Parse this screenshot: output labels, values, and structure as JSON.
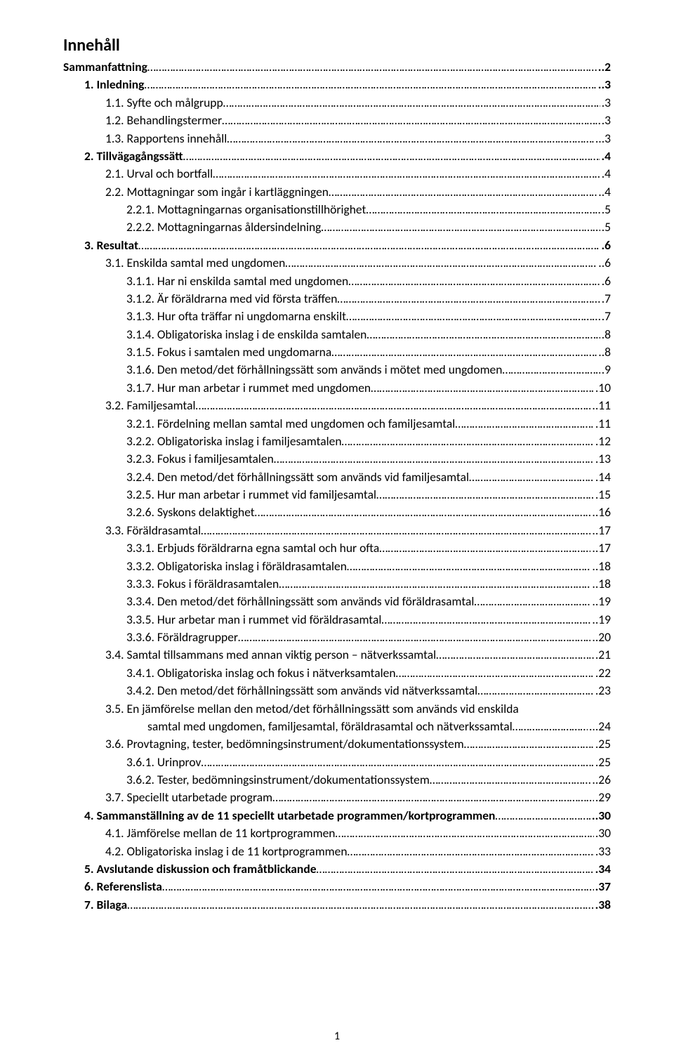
{
  "title": "Innehåll",
  "page_number": "1",
  "entries": [
    {
      "indent": 0,
      "bold": true,
      "label": "Sammanfattning",
      "page": "..2"
    },
    {
      "indent": 1,
      "bold": true,
      "label": "1.  Inledning",
      "page": "..3"
    },
    {
      "indent": 2,
      "bold": false,
      "label": "1.1. Syfte och målgrupp",
      "page": ".3"
    },
    {
      "indent": 2,
      "bold": false,
      "label": "1.2. Behandlingstermer",
      "page": ".3"
    },
    {
      "indent": 2,
      "bold": false,
      "label": "1.3. Rapportens innehåll",
      "page": "...3"
    },
    {
      "indent": 1,
      "bold": true,
      "label": "2.  Tillvägagångssätt",
      "page": ".4"
    },
    {
      "indent": 2,
      "bold": false,
      "label": "2.1. Urval och bortfall",
      "page": ".4"
    },
    {
      "indent": 2,
      "bold": false,
      "label": "2.2. Mottagningar som ingår i kartläggningen",
      "page": "..4"
    },
    {
      "indent": 3,
      "bold": false,
      "label": "2.2.1.  Mottagningarnas organisationstillhörighet",
      "page": ".5"
    },
    {
      "indent": 3,
      "bold": false,
      "label": "2.2.2.  Mottagningarnas åldersindelning",
      "page": ".5"
    },
    {
      "indent": 1,
      "bold": true,
      "label": "3.  Resultat",
      "page": ".6"
    },
    {
      "indent": 2,
      "bold": false,
      "label": "3.1. Enskilda samtal med ungdomen",
      "page": "..6"
    },
    {
      "indent": 3,
      "bold": false,
      "label": "3.1.1.  Har ni enskilda samtal med ungdomen",
      "page": ".6"
    },
    {
      "indent": 3,
      "bold": false,
      "label": "3.1.2.  Är föräldrarna med vid första träffen",
      "page": ".7"
    },
    {
      "indent": 3,
      "bold": false,
      "label": "3.1.3.  Hur ofta träffar ni ungdomarna enskilt",
      "page": ".7"
    },
    {
      "indent": 3,
      "bold": false,
      "label": "3.1.4.  Obligatoriska inslag i de enskilda samtalen",
      "page": ".8"
    },
    {
      "indent": 3,
      "bold": false,
      "label": "3.1.5.  Fokus i samtalen med ungdomarna",
      "page": "..8"
    },
    {
      "indent": 3,
      "bold": false,
      "label": "3.1.6.  Den metod/det förhållningssätt som används i mötet med ungdomen",
      "page": ".9"
    },
    {
      "indent": 3,
      "bold": false,
      "label": "3.1.7.  Hur man arbetar i rummet med ungdomen",
      "page": ".10"
    },
    {
      "indent": 2,
      "bold": false,
      "label": "3.2. Familjesamtal",
      "page": "..11"
    },
    {
      "indent": 3,
      "bold": false,
      "label": "3.2.1.  Fördelning mellan samtal med ungdomen och familjesamtal",
      "page": ".11"
    },
    {
      "indent": 3,
      "bold": false,
      "label": "3.2.2.  Obligatoriska inslag i familjesamtalen",
      "page": ".12"
    },
    {
      "indent": 3,
      "bold": false,
      "label": "3.2.3.  Fokus i familjesamtalen",
      "page": ".13"
    },
    {
      "indent": 3,
      "bold": false,
      "label": "3.2.4.  Den metod/det förhållningssätt som används vid familjesamtal",
      "page": ".14"
    },
    {
      "indent": 3,
      "bold": false,
      "label": "3.2.5.  Hur man arbetar i rummet vid familjesamtal",
      "page": ".15"
    },
    {
      "indent": 3,
      "bold": false,
      "label": "3.2.6.  Syskons delaktighet",
      "page": "..16"
    },
    {
      "indent": 2,
      "bold": false,
      "label": "3.3. Föräldrasamtal",
      "page": "..17"
    },
    {
      "indent": 3,
      "bold": false,
      "label": "3.3.1.  Erbjuds föräldrarna egna samtal och hur ofta",
      "page": "..17"
    },
    {
      "indent": 3,
      "bold": false,
      "label": "3.3.2.  Obligatoriska inslag i föräldrasamtalen",
      "page": "..18"
    },
    {
      "indent": 3,
      "bold": false,
      "label": "3.3.3.  Fokus i föräldrasamtalen",
      "page": "..18"
    },
    {
      "indent": 3,
      "bold": false,
      "label": "3.3.4.  Den metod/det förhållningssätt som används vid föräldrasamtal",
      "page": "..19"
    },
    {
      "indent": 3,
      "bold": false,
      "label": "3.3.5.  Hur arbetar man i rummet vid föräldrasamtal",
      "page": "..19"
    },
    {
      "indent": 3,
      "bold": false,
      "label": "3.3.6.  Föräldragrupper",
      "page": "..20"
    },
    {
      "indent": 2,
      "bold": false,
      "label": "3.4. Samtal tillsammans med annan viktig person – nätverkssamtal",
      "page": ".21"
    },
    {
      "indent": 3,
      "bold": false,
      "label": "3.4.1.  Obligatoriska inslag och fokus i nätverksamtalen",
      "page": ".22"
    },
    {
      "indent": 3,
      "bold": false,
      "label": "3.4.2.  Den metod/det förhållningssätt som används vid nätverkssamtal",
      "page": ".23"
    },
    {
      "indent": 2,
      "bold": false,
      "label": "3.5. En jämförelse mellan den metod/det förhållningssätt som används vid enskilda",
      "nodots": true
    },
    {
      "indent": -1,
      "bold": false,
      "label": "samtal med ungdomen, familjesamtal, föräldrasamtal och nätverkssamtal",
      "page": "...24",
      "hang": true
    },
    {
      "indent": 2,
      "bold": false,
      "label": "3.6. Provtagning, tester, bedömningsinstrument/dokumentationssystem",
      "page": ".25"
    },
    {
      "indent": 3,
      "bold": false,
      "label": "3.6.1.  Urinprov",
      "page": ".25"
    },
    {
      "indent": 3,
      "bold": false,
      "label": "3.6.2.  Tester, bedömningsinstrument/dokumentationssystem",
      "page": "..26"
    },
    {
      "indent": 2,
      "bold": false,
      "label": "3.7. Speciellt utarbetade program",
      "page": ".29"
    },
    {
      "indent": 1,
      "bold": true,
      "label": "4.  Sammanställning av de 11 speciellt utarbetade programmen/kortprogrammen",
      "page": "..30"
    },
    {
      "indent": 2,
      "bold": false,
      "label": "4.1. Jämförelse mellan de 11 kortprogrammen",
      "page": ".30"
    },
    {
      "indent": 2,
      "bold": false,
      "label": "4.2. Obligatoriska inslag i de 11 kortprogrammen",
      "page": ".33"
    },
    {
      "indent": 1,
      "bold": true,
      "label": "5.  Avslutande diskussion och framåtblickande",
      "page": ".34"
    },
    {
      "indent": 1,
      "bold": true,
      "label": "6.  Referenslista",
      "page": ".37"
    },
    {
      "indent": 1,
      "bold": true,
      "label": "7.  Bilaga",
      "page": ".38"
    }
  ]
}
